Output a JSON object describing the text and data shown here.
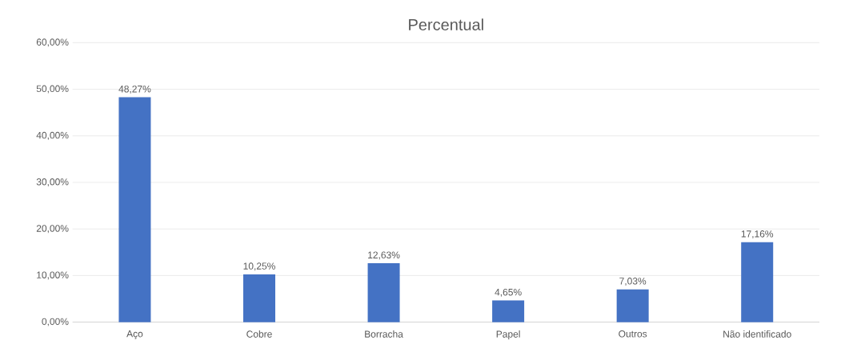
{
  "chart_data": {
    "type": "bar",
    "title": "Percentual",
    "categories": [
      "Aço",
      "Cobre",
      "Borracha",
      "Papel",
      "Outros",
      "Não identificado"
    ],
    "values": [
      48.27,
      10.25,
      12.63,
      4.65,
      7.03,
      17.16
    ],
    "value_labels": [
      "48,27%",
      "10,25%",
      "12,63%",
      "4,65%",
      "7,03%",
      "17,16%"
    ],
    "color": "#4472c4",
    "ylim": [
      0,
      60
    ],
    "yticks": [
      {
        "value": 0,
        "label": "0,00%"
      },
      {
        "value": 10,
        "label": "10,00%"
      },
      {
        "value": 20,
        "label": "20,00%"
      },
      {
        "value": 30,
        "label": "30,00%"
      },
      {
        "value": 40,
        "label": "40,00%"
      },
      {
        "value": 50,
        "label": "50,00%"
      },
      {
        "value": 60,
        "label": "60,00%"
      }
    ],
    "grid": "y"
  }
}
